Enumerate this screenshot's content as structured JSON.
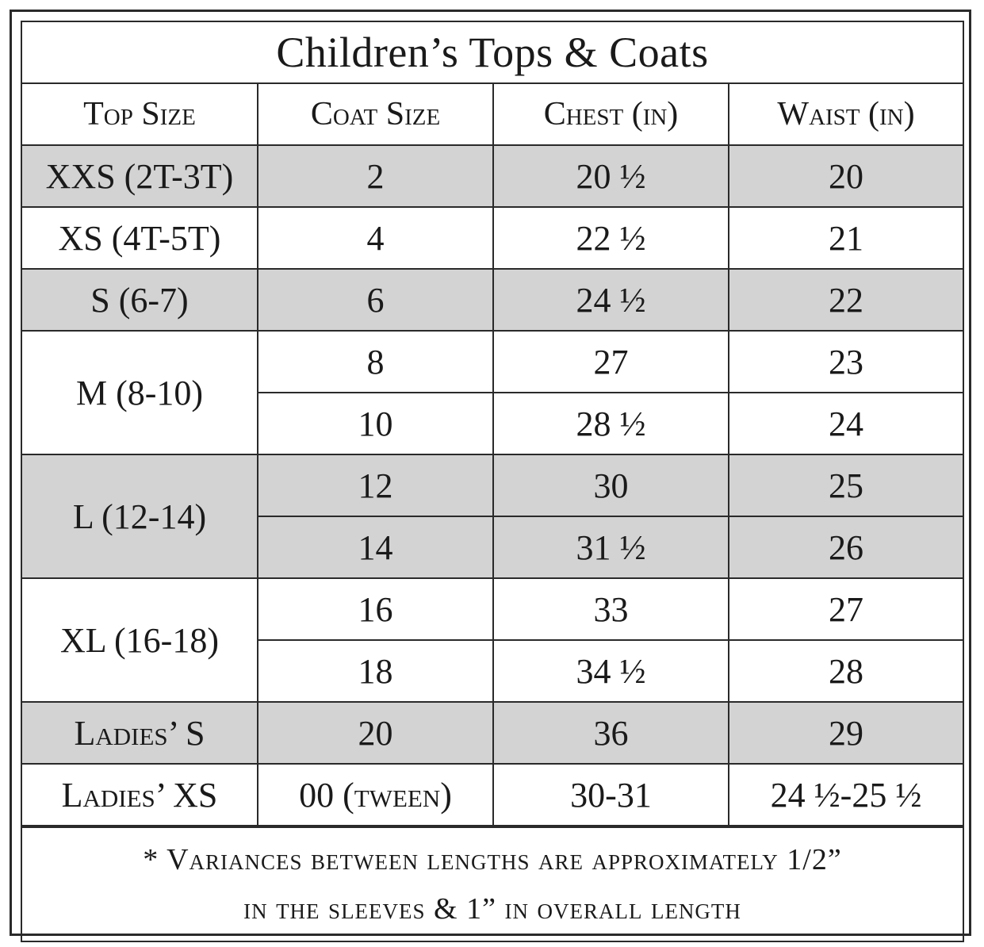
{
  "title": "Children’s Tops & Coats",
  "headers": {
    "top_size": "Top Size",
    "coat_size": "Coat Size",
    "chest": "Chest (in)",
    "waist": "Waist (in)"
  },
  "rows": [
    {
      "top": "XXS (2T-3T)",
      "coat": "2",
      "chest": "20 ½",
      "waist": "20"
    },
    {
      "top": "XS (4T-5T)",
      "coat": "4",
      "chest": "22 ½",
      "waist": "21"
    },
    {
      "top": "S (6-7)",
      "coat": "6",
      "chest": "24 ½",
      "waist": "22"
    },
    {
      "top": "M (8-10)",
      "coat": "8",
      "chest": "27",
      "waist": "23"
    },
    {
      "top": "",
      "coat": "10",
      "chest": "28 ½",
      "waist": "24"
    },
    {
      "top": "L (12-14)",
      "coat": "12",
      "chest": "30",
      "waist": "25"
    },
    {
      "top": "",
      "coat": "14",
      "chest": "31 ½",
      "waist": "26"
    },
    {
      "top": "XL (16-18)",
      "coat": "16",
      "chest": "33",
      "waist": "27"
    },
    {
      "top": "",
      "coat": "18",
      "chest": "34 ½",
      "waist": "28"
    },
    {
      "top": "Ladies’ S",
      "coat": "20",
      "chest": "36",
      "waist": "29"
    },
    {
      "top": "Ladies’ XS",
      "coat": "00 (tween)",
      "chest": "30-31",
      "waist": "24 ½-25 ½"
    }
  ],
  "note": {
    "line1": "* Variances between lengths are approximately 1/2”",
    "line2": "in the sleeves & 1” in overall length"
  }
}
